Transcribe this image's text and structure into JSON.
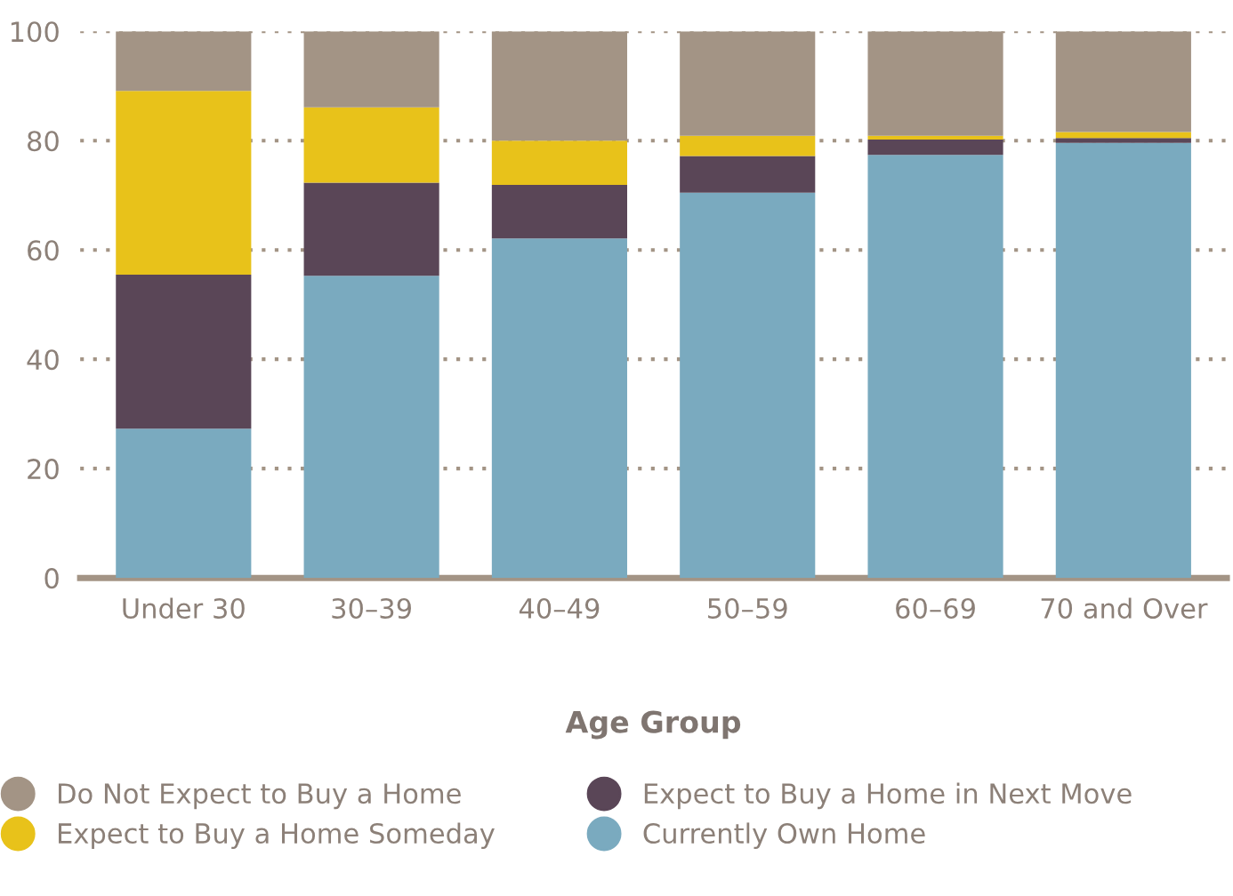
{
  "chart_data": {
    "type": "bar",
    "stacked": true,
    "xlabel": "Age Group",
    "categories": [
      "Under 30",
      "30–39",
      "40–49",
      "50–59",
      "60–69",
      "70 and Over"
    ],
    "series": [
      {
        "name": "Currently Own Home",
        "color": "#7aaabf",
        "values": [
          27.3,
          55.3,
          62.1,
          70.5,
          77.4,
          79.6
        ]
      },
      {
        "name": "Expect to Buy a Home in Next Move",
        "color": "#5a4657",
        "values": [
          28.2,
          17.0,
          9.8,
          6.7,
          2.8,
          0.9
        ]
      },
      {
        "name": "Expect to Buy a Home Someday",
        "color": "#e8c21a",
        "values": [
          33.6,
          13.8,
          8.1,
          3.7,
          0.7,
          1.1
        ]
      },
      {
        "name": "Do Not Expect to Buy a Home",
        "color": "#a39485",
        "values": [
          10.9,
          13.9,
          20.0,
          19.1,
          19.1,
          18.4
        ]
      }
    ],
    "ylim": [
      0,
      100
    ],
    "yticks": [
      0,
      20,
      40,
      60,
      80,
      100
    ],
    "grid": "y",
    "legend": "bottom"
  }
}
